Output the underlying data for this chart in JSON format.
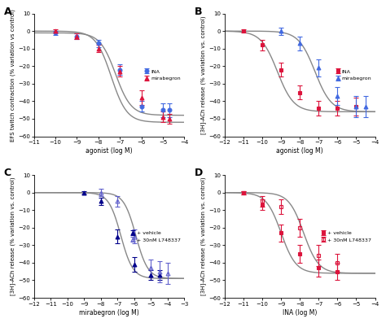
{
  "A": {
    "label": "A",
    "xlabel": "agonist (log M)",
    "ylabel": "EFS twitch contraction (% variation vs control)",
    "xlim": [
      -11,
      -4
    ],
    "ylim": [
      -60,
      10
    ],
    "xticks": [
      -11,
      -10,
      -9,
      -8,
      -7,
      -6,
      -5,
      -4
    ],
    "yticks": [
      -60,
      -50,
      -40,
      -30,
      -20,
      -10,
      0,
      10
    ],
    "series": [
      {
        "key": "INA",
        "x": [
          -10,
          -9,
          -8,
          -7,
          -6,
          -5,
          -4.7
        ],
        "y": [
          -1,
          -3,
          -7,
          -22,
          -43,
          -45,
          -45
        ],
        "yerr": [
          1,
          1.5,
          2,
          3,
          3,
          4,
          4
        ],
        "color": "#4169e1",
        "marker": "o",
        "filled": true,
        "label": "INA",
        "ec50": -7.2,
        "hill": 1.2,
        "top": -1,
        "bottom": -48
      },
      {
        "key": "mirabegron",
        "x": [
          -10,
          -9,
          -8,
          -7,
          -6,
          -5,
          -4.7
        ],
        "y": [
          0,
          -3,
          -10,
          -23,
          -38,
          -49,
          -50
        ],
        "yerr": [
          1,
          1.5,
          2,
          3,
          4,
          3,
          3
        ],
        "color": "#dc143c",
        "marker": "^",
        "filled": true,
        "label": "mirabegron",
        "ec50": -7.4,
        "hill": 1.2,
        "top": 0,
        "bottom": -52
      }
    ]
  },
  "B": {
    "label": "B",
    "xlabel": "agonist (log M)",
    "ylabel": "[3H]-ACh release (% variation vs. control)",
    "xlim": [
      -12,
      -4
    ],
    "ylim": [
      -60,
      10
    ],
    "xticks": [
      -12,
      -11,
      -10,
      -9,
      -8,
      -7,
      -6,
      -5,
      -4
    ],
    "yticks": [
      -60,
      -50,
      -40,
      -30,
      -20,
      -10,
      0,
      10
    ],
    "series": [
      {
        "key": "INA",
        "x": [
          -11,
          -10,
          -9,
          -8,
          -7,
          -6,
          -5
        ],
        "y": [
          0,
          -8,
          -22,
          -35,
          -44,
          -44,
          -43
        ],
        "yerr": [
          1,
          3,
          4,
          4,
          4,
          4,
          5
        ],
        "color": "#dc143c",
        "marker": "s",
        "filled": true,
        "label": "INA",
        "ec50": -9.2,
        "hill": 1.0,
        "top": 0,
        "bottom": -46
      },
      {
        "key": "mirabegron",
        "x": [
          -9,
          -8,
          -7,
          -6,
          -5,
          -4.5
        ],
        "y": [
          0,
          -7,
          -21,
          -37,
          -43,
          -43
        ],
        "yerr": [
          2,
          4,
          5,
          5,
          6,
          6
        ],
        "color": "#4169e1",
        "marker": "^",
        "filled": true,
        "label": "mirabegron",
        "ec50": -7.2,
        "hill": 1.0,
        "top": 0,
        "bottom": -46
      }
    ]
  },
  "C": {
    "label": "C",
    "xlabel": "mirabegron (log M)",
    "ylabel": "[3H]-ACh release (% variation vs. control)",
    "xlim": [
      -12,
      -3
    ],
    "ylim": [
      -60,
      10
    ],
    "xticks": [
      -12,
      -11,
      -10,
      -9,
      -8,
      -7,
      -6,
      -5,
      -4,
      -3
    ],
    "yticks": [
      -60,
      -50,
      -40,
      -30,
      -20,
      -10,
      0,
      10
    ],
    "series": [
      {
        "key": "vehicle",
        "x": [
          -9,
          -8,
          -7,
          -6,
          -5,
          -4.5
        ],
        "y": [
          0,
          -5,
          -25,
          -41,
          -47,
          -47
        ],
        "yerr": [
          1,
          2,
          4,
          4,
          3,
          3
        ],
        "color": "#00008b",
        "marker": "^",
        "filled": true,
        "label": "+ vehicle",
        "ec50": -6.8,
        "hill": 1.2,
        "top": 0,
        "bottom": -49
      },
      {
        "key": "L748337",
        "x": [
          -8,
          -7,
          -6,
          -5,
          -4.5,
          -4
        ],
        "y": [
          0,
          -5,
          -25,
          -43,
          -45,
          -46
        ],
        "yerr": [
          2,
          3,
          4,
          5,
          6,
          6
        ],
        "color": "#6060cc",
        "marker": "^",
        "filled": false,
        "label": "+ 30nM L748337",
        "ec50": -5.9,
        "hill": 1.2,
        "top": 0,
        "bottom": -49
      }
    ]
  },
  "D": {
    "label": "D",
    "xlabel": "INA (log M)",
    "ylabel": "[3H]-ACh release (% variation vs. control)",
    "xlim": [
      -12,
      -4
    ],
    "ylim": [
      -60,
      10
    ],
    "xticks": [
      -12,
      -11,
      -10,
      -9,
      -8,
      -7,
      -6,
      -5,
      -4
    ],
    "yticks": [
      -60,
      -50,
      -40,
      -30,
      -20,
      -10,
      0,
      10
    ],
    "series": [
      {
        "key": "vehicle",
        "x": [
          -11,
          -10,
          -9,
          -8,
          -7,
          -6
        ],
        "y": [
          0,
          -7,
          -23,
          -35,
          -43,
          -45
        ],
        "yerr": [
          1,
          3,
          5,
          5,
          5,
          5
        ],
        "color": "#dc143c",
        "marker": "s",
        "filled": true,
        "label": "+ vehicle",
        "ec50": -9.0,
        "hill": 1.1,
        "top": 0,
        "bottom": -46
      },
      {
        "key": "L748337",
        "x": [
          -11,
          -10,
          -9,
          -8,
          -7,
          -6
        ],
        "y": [
          0,
          -5,
          -8,
          -20,
          -36,
          -40
        ],
        "yerr": [
          1,
          3,
          4,
          5,
          6,
          5
        ],
        "color": "#dc143c",
        "marker": "s",
        "filled": false,
        "label": "+ 30nM L748337",
        "ec50": -7.8,
        "hill": 1.1,
        "top": 0,
        "bottom": -46
      }
    ]
  }
}
